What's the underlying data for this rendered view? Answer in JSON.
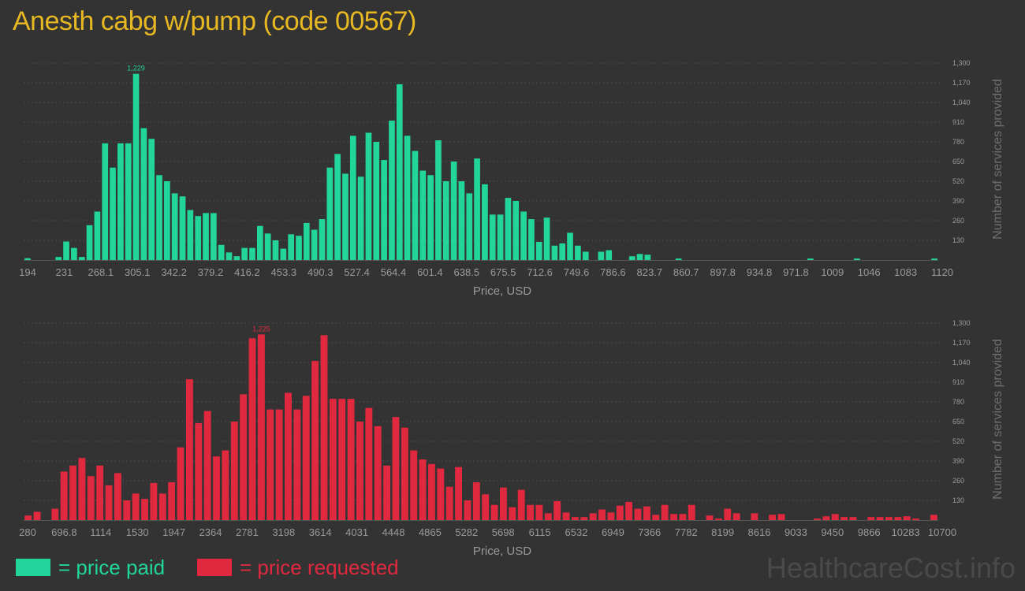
{
  "title": "Anesth cabg w/pump (code 00567)",
  "legend": {
    "paid": "= price paid",
    "requested": "= price requested"
  },
  "watermark": "HealthcareCost.info",
  "colors": {
    "paid": "#22d69b",
    "requested": "#e0293f",
    "title": "#e8b823",
    "background": "#333333"
  },
  "chart_data": [
    {
      "type": "bar",
      "series_name": "price paid",
      "xlabel": "Price, USD",
      "ylabel": "Number of services provided",
      "ylim": [
        0,
        1300
      ],
      "yticks": [
        "130",
        "260",
        "390",
        "520",
        "650",
        "780",
        "910",
        "1,040",
        "1,170",
        "1,300"
      ],
      "xticks": [
        "194",
        "231",
        "268.1",
        "305.1",
        "342.2",
        "379.2",
        "416.2",
        "453.3",
        "490.3",
        "527.4",
        "564.4",
        "601.4",
        "638.5",
        "675.5",
        "712.6",
        "749.6",
        "786.6",
        "823.7",
        "860.7",
        "897.8",
        "934.8",
        "971.8",
        "1009",
        "1046",
        "1083",
        "1120"
      ],
      "annotation": "1,229",
      "peak_index": 14,
      "values": [
        12,
        0,
        0,
        0,
        20,
        122,
        80,
        20,
        230,
        320,
        770,
        610,
        770,
        770,
        1229,
        870,
        800,
        560,
        520,
        440,
        420,
        330,
        290,
        310,
        310,
        100,
        50,
        25,
        80,
        80,
        225,
        175,
        130,
        75,
        170,
        160,
        245,
        200,
        270,
        610,
        700,
        570,
        820,
        550,
        840,
        780,
        660,
        920,
        1160,
        820,
        720,
        590,
        560,
        790,
        520,
        650,
        520,
        440,
        670,
        500,
        300,
        300,
        410,
        390,
        320,
        270,
        120,
        280,
        95,
        110,
        180,
        95,
        55,
        0,
        55,
        65,
        0,
        0,
        25,
        40,
        35,
        0,
        0,
        0,
        10,
        0,
        0,
        0,
        0,
        0,
        0,
        0,
        0,
        0,
        0,
        0,
        0,
        0,
        0,
        0,
        0,
        10,
        0,
        0,
        0,
        0,
        0,
        10,
        0,
        0,
        0,
        0,
        0,
        0,
        0,
        0,
        0,
        10
      ]
    },
    {
      "type": "bar",
      "series_name": "price requested",
      "xlabel": "Price, USD",
      "ylabel": "Number of services provided",
      "ylim": [
        0,
        1300
      ],
      "yticks": [
        "130",
        "260",
        "390",
        "520",
        "650",
        "780",
        "910",
        "1,040",
        "1,170",
        "1,300"
      ],
      "xticks": [
        "280",
        "696.8",
        "1114",
        "1530",
        "1947",
        "2364",
        "2781",
        "3198",
        "3614",
        "4031",
        "4448",
        "4865",
        "5282",
        "5698",
        "6115",
        "6532",
        "6949",
        "7366",
        "7782",
        "8199",
        "8616",
        "9033",
        "9450",
        "9866",
        "10283",
        "10700"
      ],
      "annotation": "1,225",
      "peak_index": 26,
      "values": [
        30,
        55,
        0,
        75,
        320,
        360,
        410,
        290,
        360,
        230,
        310,
        130,
        175,
        140,
        245,
        175,
        250,
        480,
        930,
        640,
        720,
        420,
        460,
        650,
        830,
        1200,
        1225,
        730,
        730,
        840,
        730,
        820,
        1050,
        1220,
        800,
        800,
        800,
        650,
        740,
        620,
        360,
        680,
        610,
        460,
        400,
        370,
        340,
        220,
        350,
        130,
        250,
        170,
        100,
        215,
        85,
        200,
        100,
        100,
        45,
        125,
        50,
        20,
        20,
        45,
        70,
        50,
        95,
        120,
        75,
        90,
        35,
        100,
        40,
        40,
        100,
        0,
        30,
        10,
        75,
        45,
        0,
        45,
        0,
        35,
        40,
        0,
        0,
        0,
        10,
        25,
        40,
        20,
        20,
        0,
        20,
        20,
        20,
        20,
        25,
        10,
        0,
        35
      ]
    }
  ]
}
